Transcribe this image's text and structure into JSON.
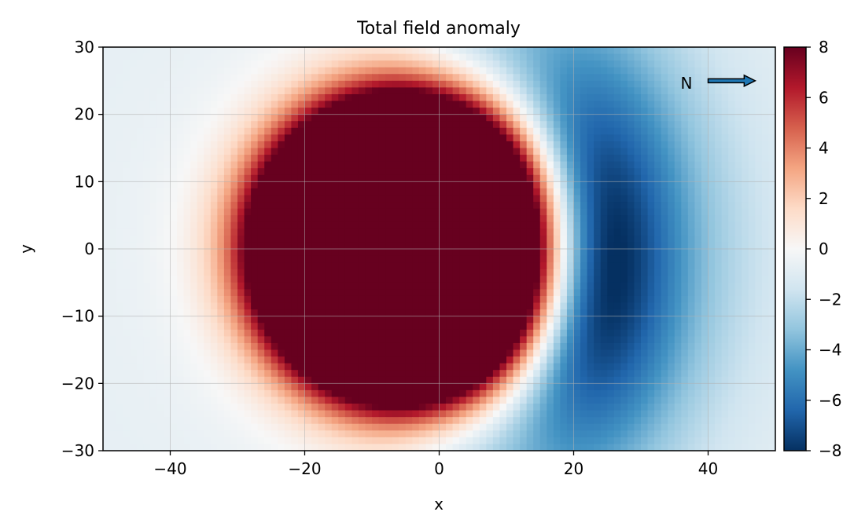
{
  "chart_data": {
    "type": "heatmap",
    "title": "Total field anomaly",
    "xlabel": "x",
    "ylabel": "y",
    "xlim": [
      -50,
      50
    ],
    "ylim": [
      -30,
      30
    ],
    "xticks": [
      {
        "value": -40,
        "label": "−40"
      },
      {
        "value": -20,
        "label": "−20"
      },
      {
        "value": 0,
        "label": "0"
      },
      {
        "value": 20,
        "label": "20"
      },
      {
        "value": 40,
        "label": "40"
      }
    ],
    "yticks": [
      {
        "value": 30,
        "label": "30"
      },
      {
        "value": 20,
        "label": "20"
      },
      {
        "value": 10,
        "label": "10"
      },
      {
        "value": 0,
        "label": "0"
      },
      {
        "value": -10,
        "label": "−10"
      },
      {
        "value": -20,
        "label": "−20"
      },
      {
        "value": -30,
        "label": "−30"
      }
    ],
    "grid": true,
    "colormap": "RdBu_r",
    "colorbar": {
      "vmin": -8,
      "vmax": 8,
      "ticks": [
        {
          "value": 8,
          "label": "8"
        },
        {
          "value": 6,
          "label": "6"
        },
        {
          "value": 4,
          "label": "4"
        },
        {
          "value": 2,
          "label": "2"
        },
        {
          "value": 0,
          "label": "0"
        },
        {
          "value": -2,
          "label": "−2"
        },
        {
          "value": -4,
          "label": "−4"
        },
        {
          "value": -6,
          "label": "−6"
        },
        {
          "value": -8,
          "label": "−8"
        }
      ],
      "colors": [
        "#053061",
        "#2166ac",
        "#4393c3",
        "#92c5de",
        "#d1e5f0",
        "#f7f7f7",
        "#fddbc7",
        "#f4a582",
        "#d6604d",
        "#b2182b",
        "#67001f"
      ]
    },
    "grid_resolution": {
      "nx": 100,
      "ny": 60
    },
    "features": {
      "positive_center": [
        -5,
        0
      ],
      "positive_radius_saturated": 17,
      "negative_center": [
        21,
        -1
      ],
      "min_value": -8,
      "max_value": 8
    },
    "annotation": {
      "text": "N",
      "arrow_from": [
        40,
        25
      ],
      "arrow_to": [
        47,
        25
      ],
      "arrow_color": "#1f77b4"
    }
  }
}
